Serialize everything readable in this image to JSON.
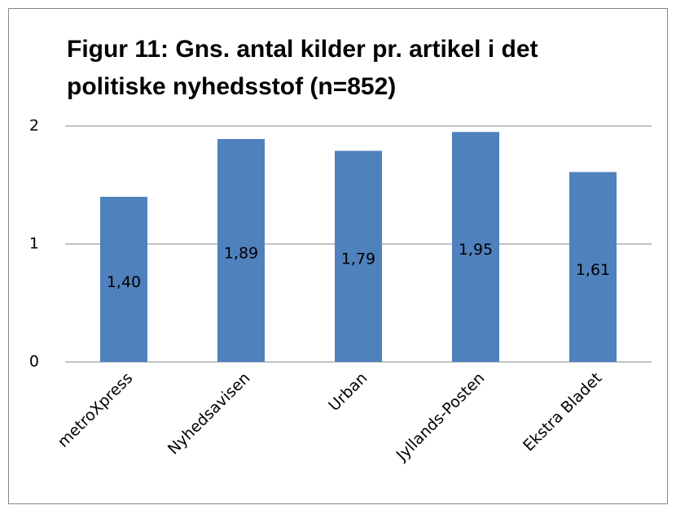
{
  "chart_data": {
    "type": "bar",
    "title": "Figur 11: Gns. antal kilder pr. artikel i det politiske nyhedsstof (n=852)",
    "categories": [
      "metroXpress",
      "Nyhedsavisen",
      "Urban",
      "Jyllands-Posten",
      "Ekstra Bladet"
    ],
    "values": [
      1.4,
      1.89,
      1.79,
      1.95,
      1.61
    ],
    "value_labels": [
      "1,40",
      "1,89",
      "1,79",
      "1,95",
      "1,61"
    ],
    "color": "#4f81bd",
    "ylim": [
      0,
      2
    ],
    "yticks": [
      0,
      1,
      2
    ],
    "grid": true
  }
}
